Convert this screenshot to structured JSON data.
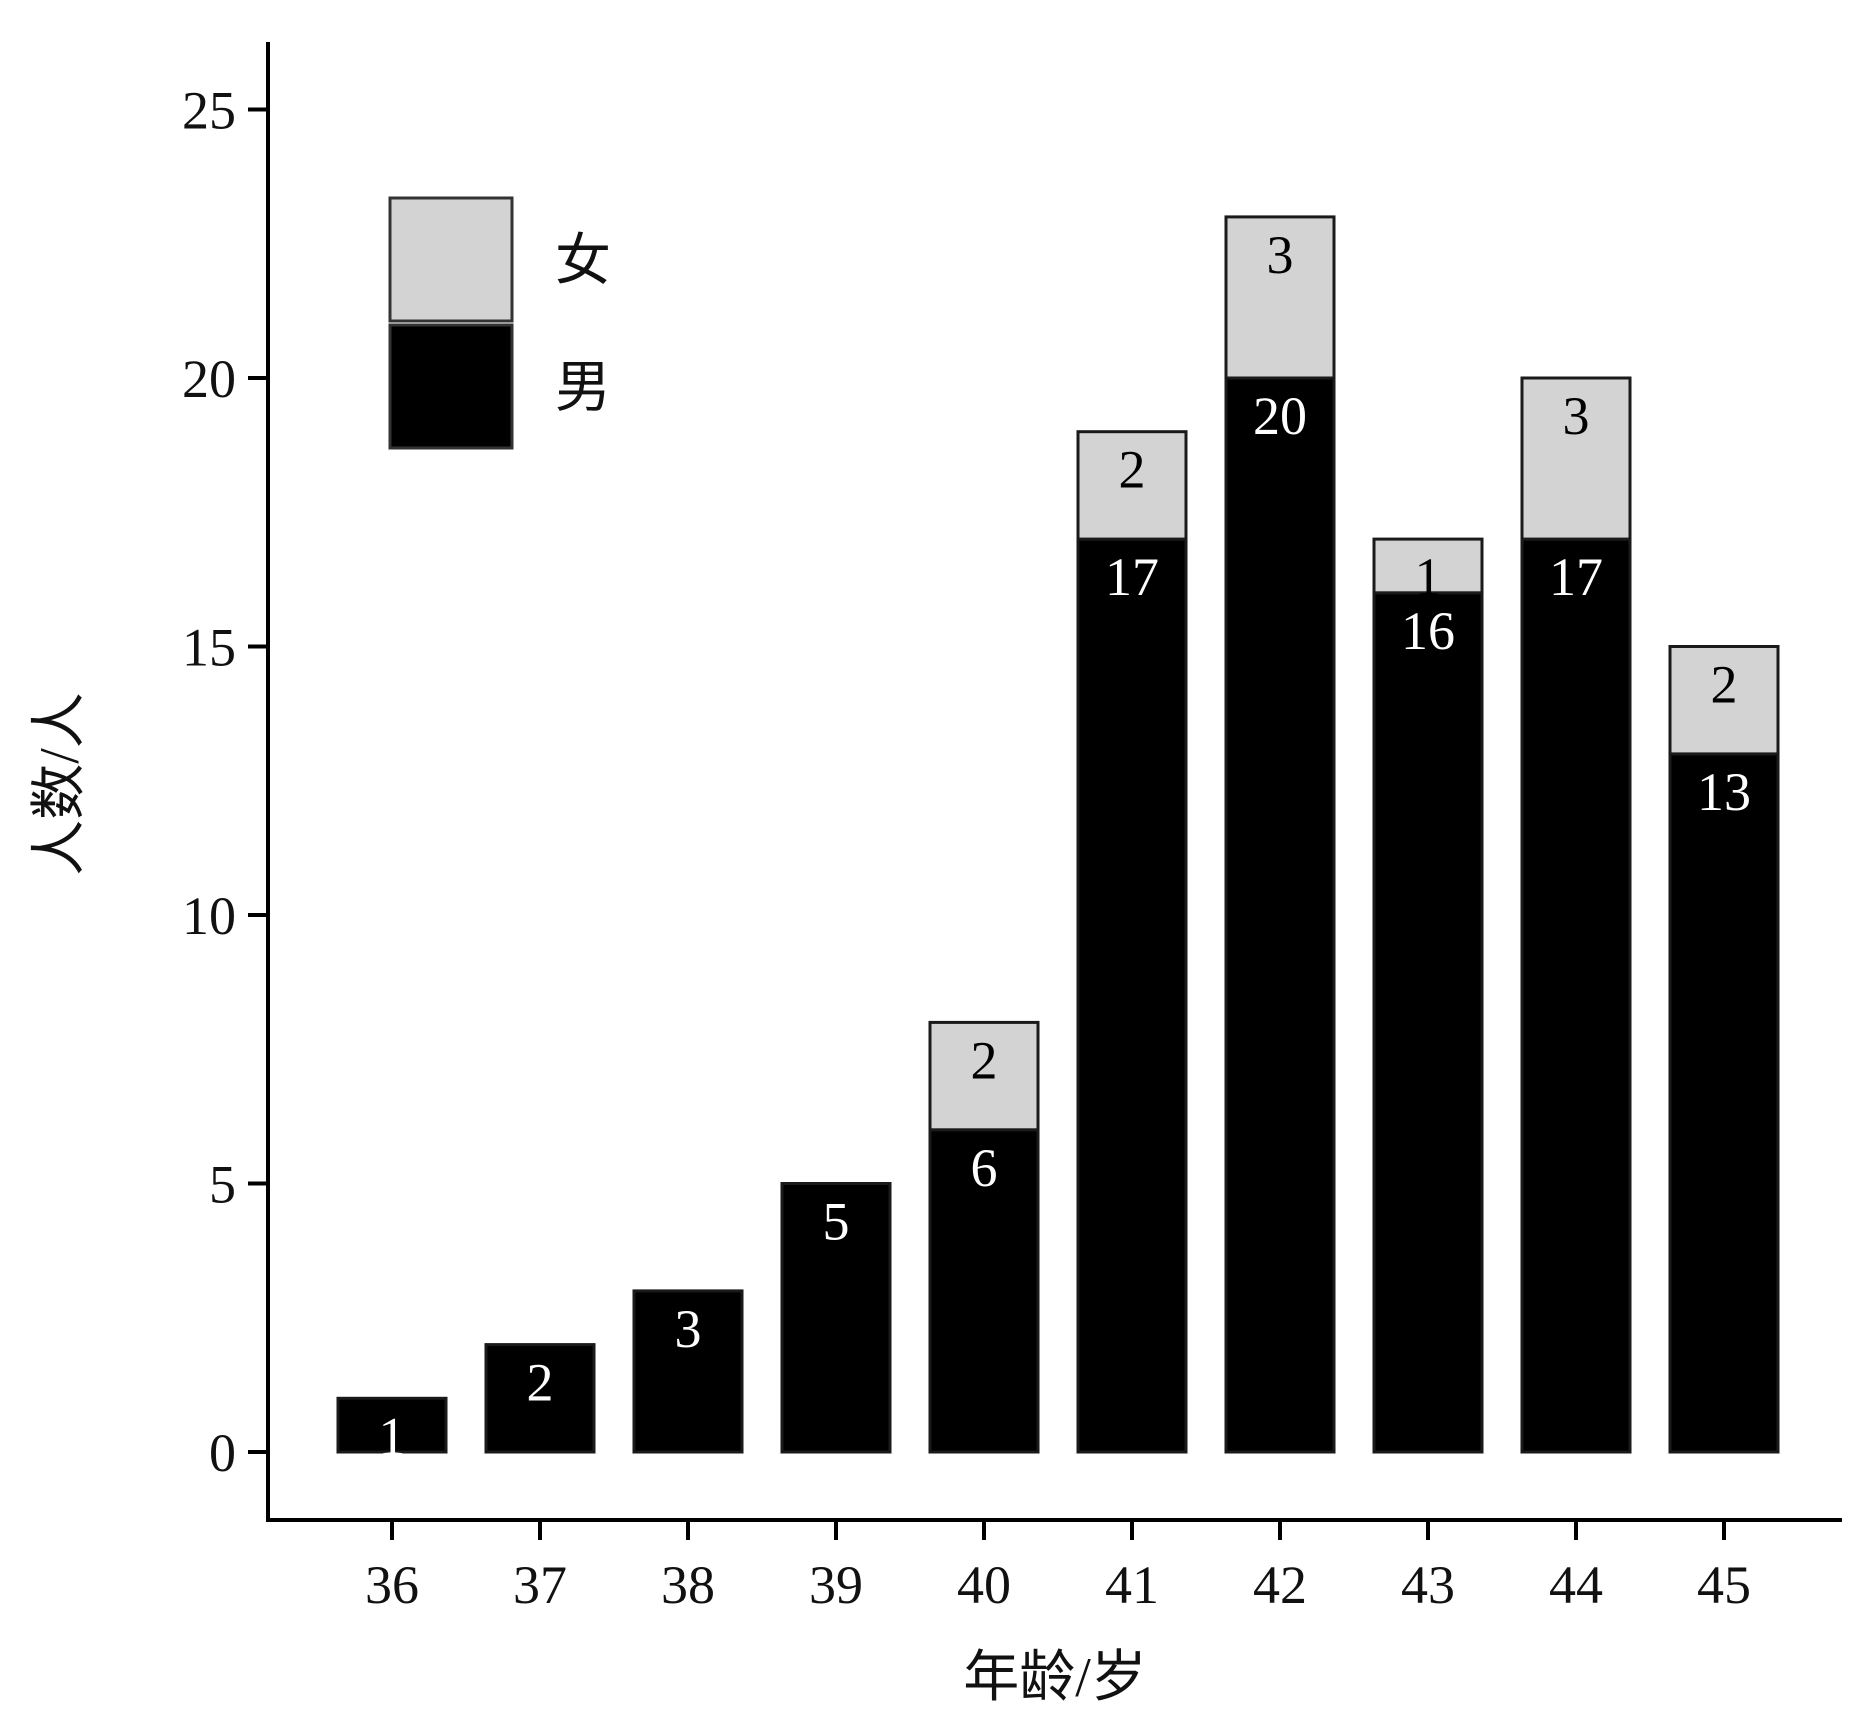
{
  "chart_data": {
    "type": "bar",
    "stacked": true,
    "title": "",
    "xlabel": "年龄/岁",
    "ylabel": "人数/人",
    "categories": [
      "36",
      "37",
      "38",
      "39",
      "40",
      "41",
      "42",
      "43",
      "44",
      "45"
    ],
    "series": [
      {
        "name": "男",
        "values": [
          1,
          2,
          3,
          5,
          6,
          17,
          20,
          16,
          17,
          13
        ],
        "color": "#000000",
        "label_color": "#ffffff"
      },
      {
        "name": "女",
        "values": [
          0,
          0,
          0,
          0,
          2,
          2,
          3,
          1,
          3,
          2
        ],
        "color": "#d3d3d3",
        "label_color": "#000000"
      }
    ],
    "ylim": [
      0,
      26
    ],
    "yticks": [
      0,
      5,
      10,
      15,
      20,
      25
    ],
    "grid": false,
    "legend": {
      "position": "top-left",
      "order": [
        "女",
        "男"
      ]
    },
    "bar_edge_color": "#1a1a1a",
    "axis_color": "#000000"
  }
}
